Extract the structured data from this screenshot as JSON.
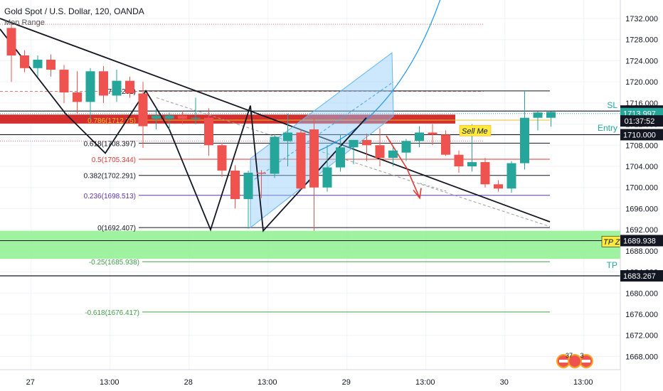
{
  "header": {
    "symbol_line": "Gold Spot / U.S. Dollar, 120, OANDA",
    "indicator": "Mon Range"
  },
  "chart_data": {
    "type": "candlestick",
    "price_axis": {
      "ylim": [
        1665.5,
        1735.5
      ],
      "ticks": [
        "1732.000",
        "1728.000",
        "1724.000",
        "1720.000",
        "1716.000",
        "1712.000",
        "1708.000",
        "1704.000",
        "1700.000",
        "1696.000",
        "1692.000",
        "1688.000",
        "1684.000",
        "1680.000",
        "1676.000",
        "1672.000",
        "1668.000"
      ],
      "tick_values": [
        1732,
        1728,
        1724,
        1720,
        1716,
        1712,
        1708,
        1704,
        1700,
        1696,
        1692,
        1688,
        1684,
        1680,
        1676,
        1672,
        1668
      ]
    },
    "time_axis": {
      "ticks": [
        "27",
        "13:00",
        "28",
        "13:00",
        "29",
        "13:00",
        "30",
        "13:00"
      ],
      "tick_index": [
        1.5,
        7.5,
        13.5,
        19.5,
        25.5,
        31.5,
        37.5,
        43.5
      ]
    },
    "price_tags": [
      {
        "value": "1714.475",
        "price": 1714.475,
        "style": "dark"
      },
      {
        "value": "1713.997",
        "price": 1713.997,
        "style": "teal"
      },
      {
        "value": "01:37:52",
        "price": 1712.6,
        "style": "dark-countdown"
      },
      {
        "value": "1710.000",
        "price": 1710.0,
        "style": "dark"
      },
      {
        "value": "1689.938",
        "price": 1689.938,
        "style": "dark"
      },
      {
        "value": "1683.267",
        "price": 1683.267,
        "style": "dark"
      }
    ],
    "level_labels": [
      {
        "text": "SL",
        "price": 1715.6
      },
      {
        "text": "Entry",
        "price": 1711.3
      },
      {
        "text": "TP",
        "price": 1685.3
      }
    ],
    "annotations": [
      {
        "text": "Sell Me",
        "price": 1710.7
      },
      {
        "text": "TP Z",
        "price": 1689.7
      }
    ],
    "fib_levels": [
      {
        "label": "(1718.281)",
        "price": 1718.281,
        "color": "#131722"
      },
      {
        "label": "0.786(1712.75)",
        "price": 1712.75,
        "color": "#e6c229"
      },
      {
        "label": "0.618(1708.397)",
        "price": 1708.397,
        "color": "#131722"
      },
      {
        "label": "0.5(1705.344)",
        "price": 1705.344,
        "color": "#e53935"
      },
      {
        "label": "0.382(1702.291)",
        "price": 1702.291,
        "color": "#131722"
      },
      {
        "label": "0.236(1698.513)",
        "price": 1698.513,
        "color": "#5e35b1"
      },
      {
        "label": "0(1692.407)",
        "price": 1692.407,
        "color": "#131722"
      },
      {
        "label": "-0.25(1685.938)",
        "price": 1685.938,
        "color": "#43a047"
      },
      {
        "label": "-0.618(1676.417)",
        "price": 1676.417,
        "color": "#43a047"
      }
    ],
    "candles": [
      {
        "o": 1730.2,
        "h": 1731.0,
        "l": 1720.0,
        "c": 1725.0
      },
      {
        "o": 1725.0,
        "h": 1726.0,
        "l": 1721.8,
        "c": 1722.6
      },
      {
        "o": 1722.6,
        "h": 1725.0,
        "l": 1721.0,
        "c": 1724.2
      },
      {
        "o": 1724.2,
        "h": 1725.2,
        "l": 1721.0,
        "c": 1722.3
      },
      {
        "o": 1722.3,
        "h": 1723.2,
        "l": 1716.0,
        "c": 1718.0
      },
      {
        "o": 1718.0,
        "h": 1722.0,
        "l": 1714.0,
        "c": 1716.2
      },
      {
        "o": 1716.2,
        "h": 1722.6,
        "l": 1712.8,
        "c": 1722.0
      },
      {
        "o": 1722.0,
        "h": 1723.0,
        "l": 1716.0,
        "c": 1717.4
      },
      {
        "o": 1717.4,
        "h": 1722.3,
        "l": 1716.2,
        "c": 1720.2
      },
      {
        "o": 1720.2,
        "h": 1721.0,
        "l": 1717.0,
        "c": 1717.8
      },
      {
        "o": 1717.8,
        "h": 1720.0,
        "l": 1707.5,
        "c": 1711.6
      },
      {
        "o": 1713.0,
        "h": 1715.0,
        "l": 1711.0,
        "c": 1713.6
      },
      {
        "o": 1713.0,
        "h": 1714.2,
        "l": 1711.0,
        "c": 1713.6
      },
      {
        "o": 1713.6,
        "h": 1714.5,
        "l": 1712.0,
        "c": 1713.0
      },
      {
        "o": 1713.0,
        "h": 1717.0,
        "l": 1712.0,
        "c": 1713.2
      },
      {
        "o": 1713.2,
        "h": 1715.0,
        "l": 1706.0,
        "c": 1708.0
      },
      {
        "o": 1708.0,
        "h": 1708.5,
        "l": 1702.0,
        "c": 1703.2
      },
      {
        "o": 1703.2,
        "h": 1704.2,
        "l": 1696.0,
        "c": 1697.8
      },
      {
        "o": 1697.8,
        "h": 1703.2,
        "l": 1692.2,
        "c": 1702.8
      },
      {
        "o": 1702.8,
        "h": 1703.3,
        "l": 1698.0,
        "c": 1702.6
      },
      {
        "o": 1702.6,
        "h": 1710.0,
        "l": 1701.8,
        "c": 1709.6
      },
      {
        "o": 1708.8,
        "h": 1714.0,
        "l": 1704.0,
        "c": 1710.4
      },
      {
        "o": 1710.4,
        "h": 1711.0,
        "l": 1699.5,
        "c": 1699.8
      },
      {
        "o": 1711.0,
        "h": 1713.0,
        "l": 1691.8,
        "c": 1700.0
      },
      {
        "o": 1700.0,
        "h": 1708.0,
        "l": 1699.2,
        "c": 1703.8
      },
      {
        "o": 1703.8,
        "h": 1710.0,
        "l": 1703.0,
        "c": 1707.6
      },
      {
        "o": 1707.6,
        "h": 1709.0,
        "l": 1704.4,
        "c": 1709.0
      },
      {
        "o": 1709.0,
        "h": 1710.2,
        "l": 1705.0,
        "c": 1708.0
      },
      {
        "o": 1708.0,
        "h": 1711.2,
        "l": 1704.0,
        "c": 1705.6
      },
      {
        "o": 1705.6,
        "h": 1707.6,
        "l": 1704.0,
        "c": 1707.0
      },
      {
        "o": 1706.6,
        "h": 1709.2,
        "l": 1705.0,
        "c": 1708.8
      },
      {
        "o": 1708.8,
        "h": 1711.6,
        "l": 1707.6,
        "c": 1710.4
      },
      {
        "o": 1710.4,
        "h": 1712.0,
        "l": 1708.0,
        "c": 1710.0
      },
      {
        "o": 1710.0,
        "h": 1710.8,
        "l": 1706.0,
        "c": 1706.2
      },
      {
        "o": 1706.2,
        "h": 1707.0,
        "l": 1702.8,
        "c": 1704.0
      },
      {
        "o": 1704.0,
        "h": 1712.0,
        "l": 1703.0,
        "c": 1704.8
      },
      {
        "o": 1704.8,
        "h": 1705.6,
        "l": 1700.0,
        "c": 1700.6
      },
      {
        "o": 1700.6,
        "h": 1701.4,
        "l": 1699.2,
        "c": 1699.8
      },
      {
        "o": 1699.8,
        "h": 1705.0,
        "l": 1699.0,
        "c": 1704.6
      },
      {
        "o": 1704.6,
        "h": 1718.4,
        "l": 1703.4,
        "c": 1713.2
      },
      {
        "o": 1713.2,
        "h": 1714.4,
        "l": 1710.8,
        "c": 1714.2
      },
      {
        "o": 1713.2,
        "h": 1714.4,
        "l": 1711.5,
        "c": 1714.3
      }
    ],
    "chart_badges": [
      "37",
      "3"
    ]
  }
}
